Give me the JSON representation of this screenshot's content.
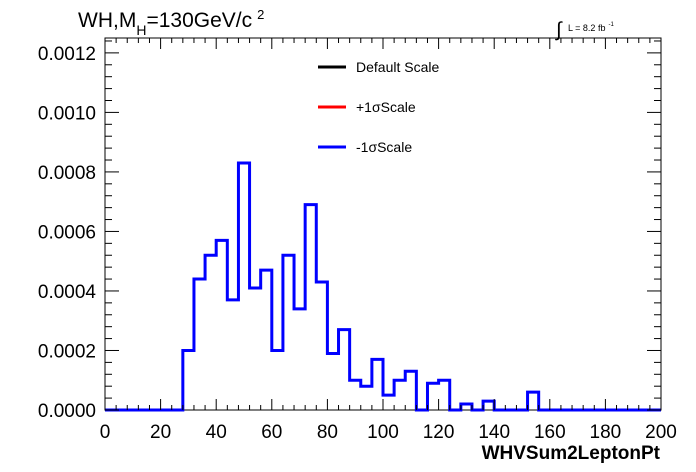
{
  "chart_data": {
    "type": "line",
    "title": {
      "prefix": "WH,M",
      "sub": "H",
      "suffix": "=130GeV/c",
      "sup": "2"
    },
    "luminosity": {
      "symbol": "∫",
      "text": "L = 8.2 fb",
      "sup": "-1"
    },
    "xlabel": "WHVSum2LeptonPt",
    "ylabel": "",
    "xlim": [
      0,
      200
    ],
    "ylim": [
      0,
      0.00125
    ],
    "xticks": [
      0,
      20,
      40,
      60,
      80,
      100,
      120,
      140,
      160,
      180,
      200
    ],
    "yticks": [
      "0.0000",
      "0.0002",
      "0.0004",
      "0.0006",
      "0.0008",
      "0.0010",
      "0.0012"
    ],
    "ytick_values": [
      0,
      0.0002,
      0.0004,
      0.0006,
      0.0008,
      0.001,
      0.0012
    ],
    "bin_width": 4,
    "bin_edges_start": 0,
    "legend": [
      {
        "label": "Default Scale",
        "color": "#000000"
      },
      {
        "label": "+1σScale",
        "color": "#ff0000"
      },
      {
        "label": "-1σScale",
        "color": "#0000ff"
      }
    ],
    "series": [
      {
        "name": "-1σScale",
        "color": "#0000ff",
        "values": [
          0,
          0,
          0,
          0,
          0,
          0,
          0,
          0.0002,
          0.00044,
          0.00052,
          0.00057,
          0.00037,
          0.00083,
          0.00041,
          0.00047,
          0.0002,
          0.00052,
          0.00034,
          0.00069,
          0.00043,
          0.00019,
          0.00027,
          0.0001,
          8e-05,
          0.00017,
          5e-05,
          0.0001,
          0.00013,
          0,
          9e-05,
          0.0001,
          0,
          2e-05,
          0,
          3e-05,
          0,
          0,
          0,
          6e-05,
          0,
          0,
          0,
          0,
          0,
          0,
          0,
          0,
          0,
          0,
          0
        ]
      }
    ]
  }
}
